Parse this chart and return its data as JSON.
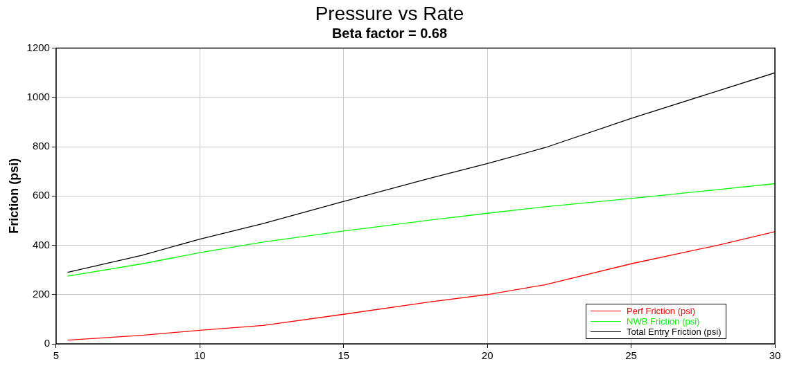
{
  "chart_data": {
    "type": "line",
    "title": "Pressure vs Rate",
    "subtitle": "Beta factor = 0.68",
    "ylabel": "Friction (psi)",
    "x": [
      5.4,
      8,
      10,
      12.2,
      15,
      18,
      20,
      22,
      25,
      28,
      30
    ],
    "series": [
      {
        "name": "Perf Friction (psi)",
        "color": "#ff0000",
        "values": [
          15,
          35,
          55,
          75,
          120,
          170,
          200,
          240,
          325,
          400,
          455
        ]
      },
      {
        "name": "NWB Friction (psi)",
        "color": "#00ff00",
        "values": [
          275,
          325,
          370,
          413,
          458,
          502,
          530,
          556,
          590,
          626,
          650
        ]
      },
      {
        "name": "Total Entry Friction (psi)",
        "color": "#000000",
        "values": [
          290,
          360,
          425,
          488,
          578,
          672,
          732,
          796,
          915,
          1026,
          1100
        ]
      }
    ],
    "xlim": [
      5,
      30
    ],
    "xticks": [
      5,
      10,
      15,
      20,
      25,
      30
    ],
    "ylim": [
      0,
      1200
    ],
    "yticks": [
      0,
      200,
      400,
      600,
      800,
      1000,
      1200
    ],
    "grid": true,
    "legend": "bottom right",
    "marker": "none",
    "line_style": "solid"
  }
}
